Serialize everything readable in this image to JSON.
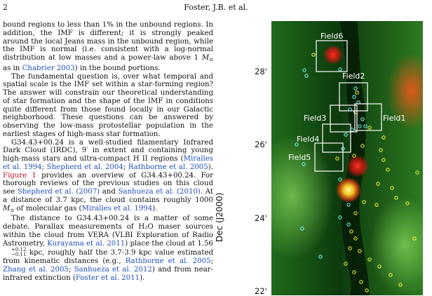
{
  "header": {
    "page_number": "2",
    "running_head": "Foster, J.B. et al."
  },
  "text": {
    "p1": "bound regions to less than 1% in the unbound regions. In addition, the IMF is different; it is strongly peaked around the local Jeans mass in the unbound region, while the IMF is normal (i.e. consistent with a log-normal distribution at low masses and a power-law above 1 ",
    "p1_unit": "M",
    "p1_unit_sub": "⊙",
    "p1_b": " as in ",
    "p1_cite": "Chabrier 2003",
    "p1_c": ") in the bound portions.",
    "p2": "The fundamental question is, over what temporal and spatial scale is the IMF set within a star-forming region? The answer will constrain our theoretical understanding of star formation and the shape of the IMF in conditions quite different from those found locally in our Galactic neighborhood. These questions can be answered by observing the low-mass protostellar population in the earliest stages of high-mass star formation.",
    "p3_a": "G34.43+00.24 is a well-studied filamentary Infrared Dark Cloud (IRDC), 9′ in extent and containing young high-mass stars and ultra-compact H II regions (",
    "p3_cite1": "Miralles et al. 1994",
    "p3_sep1": "; ",
    "p3_cite2": "Shepherd et al. 2004",
    "p3_sep2": "; ",
    "p3_cite3": "Rathborne et al. 2005",
    "p3_b": "). ",
    "p3_fig": "Figure 1",
    "p3_c": " provides an overview of G34.43+00.24. For thorough reviews of the previous studies on this cloud see ",
    "p3_cite4": "Shepherd et al.",
    "p3_cite4y": "(2007)",
    "p3_d": " and ",
    "p3_cite5": "Sanhueza et al.",
    "p3_cite5y": "(2010)",
    "p3_e": ". At a distance of 3.7 kpc, the cloud contains roughly 1000 ",
    "p3_unit": "M",
    "p3_unit_sub": "⊙",
    "p3_f": " of molecular gas (",
    "p3_cite6": "Miralles et al. 1994",
    "p3_g": ").",
    "p4_a": "The distance to G34.43+00.24 is a matter of some debate. Parallax measurements of H₂O maser sources within the cloud from VERA (VLBI Exploration of Radio Astrometry, ",
    "p4_cite1": "Kurayama et al. 2011",
    "p4_b": ") place the cloud at 1.56",
    "p4_sup": "+0.12",
    "p4_sub": "−0.11",
    "p4_c": " kpc, roughly half the 3.7-3.9 kpc value estimated from kinematic distances (e.g., ",
    "p4_cite2": "Rathborne et al. 2005",
    "p4_sep1": "; ",
    "p4_cite3": "Zhang et al. 2005",
    "p4_sep2": "; ",
    "p4_cite4": "Sanhueza et al. 2012",
    "p4_d": ") and from near-infrared extinction (",
    "p4_cite5": "Foster et al. 2011",
    "p4_e": ")."
  },
  "figure": {
    "ylabel": "Dec (J2000)",
    "ticks": [
      "28'",
      "26'",
      "24'",
      "22'"
    ],
    "fields": [
      "Field6",
      "Field2",
      "Field3",
      "Field1",
      "Field4",
      "Field5"
    ]
  }
}
